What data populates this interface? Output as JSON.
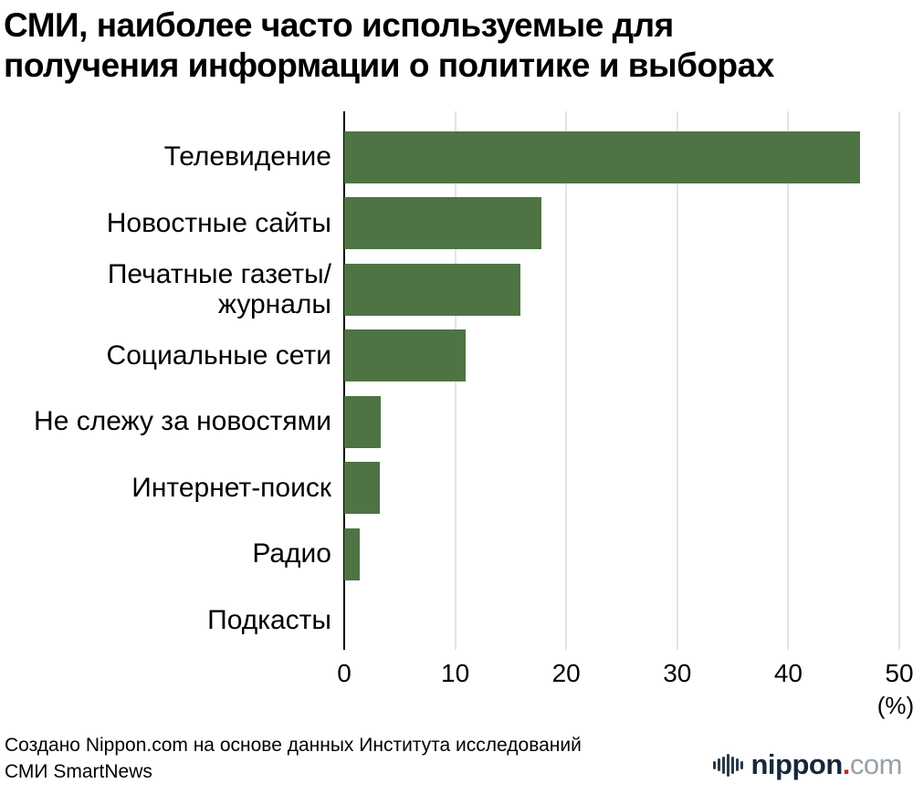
{
  "title": "СМИ, наиболее часто используемые для\nполучения информации о политике и выборах",
  "chart_data": {
    "type": "bar",
    "orientation": "horizontal",
    "title": "СМИ, наиболее часто используемые для получения информации о политике и выборах",
    "categories": [
      "Телевидение",
      "Новостные сайты",
      "Печатные газеты/\nжурналы",
      "Социальные сети",
      "Не слежу за новостями",
      "Интернет-поиск",
      "Радио",
      "Подкасты"
    ],
    "values": [
      46.5,
      17.8,
      15.9,
      10.9,
      3.3,
      3.2,
      1.4,
      0
    ],
    "xlim": [
      0,
      50
    ],
    "x_ticks": [
      0,
      10,
      20,
      30,
      40,
      50
    ],
    "unit_label": "(%)",
    "bar_color": "#4d7442",
    "grid": true,
    "legend": "none"
  },
  "footer": {
    "source": "Создано Nippon.com на основе данных Института исследований\nСМИ SmartNews",
    "logo": {
      "name": "nippon.com",
      "text_main": "nippon",
      "text_dot": ".",
      "text_suffix": "com"
    }
  }
}
